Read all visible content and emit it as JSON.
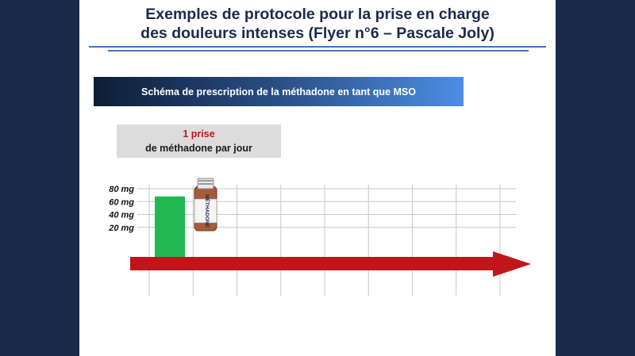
{
  "title": {
    "line1": "Exemples de protocole pour la prise en charge",
    "line2": "des douleurs intenses (Flyer n°6 – Pascale Joly)"
  },
  "banner": {
    "text": "Schéma de prescription de la méthadone en tant que MSO"
  },
  "note": {
    "line1": "1 prise",
    "line2": "de méthadone par jour"
  },
  "colors": {
    "title": "#1b2a4a",
    "bar": "#22b852",
    "arrow": "#c0161b",
    "grid": "#c8c8c8"
  },
  "bottle": {
    "icon": "methadone-bottle-icon",
    "label": "MÉTHADONE"
  },
  "chart_data": {
    "type": "bar",
    "title": "",
    "xlabel": "",
    "ylabel": "",
    "categories": [
      ""
    ],
    "values": [
      68
    ],
    "y_ticks": [
      "20 mg",
      "40 mg",
      "60 mg",
      "80 mg"
    ],
    "ylim": [
      0,
      80
    ],
    "grid": true,
    "x_gridlines": 9,
    "legend": "none"
  }
}
